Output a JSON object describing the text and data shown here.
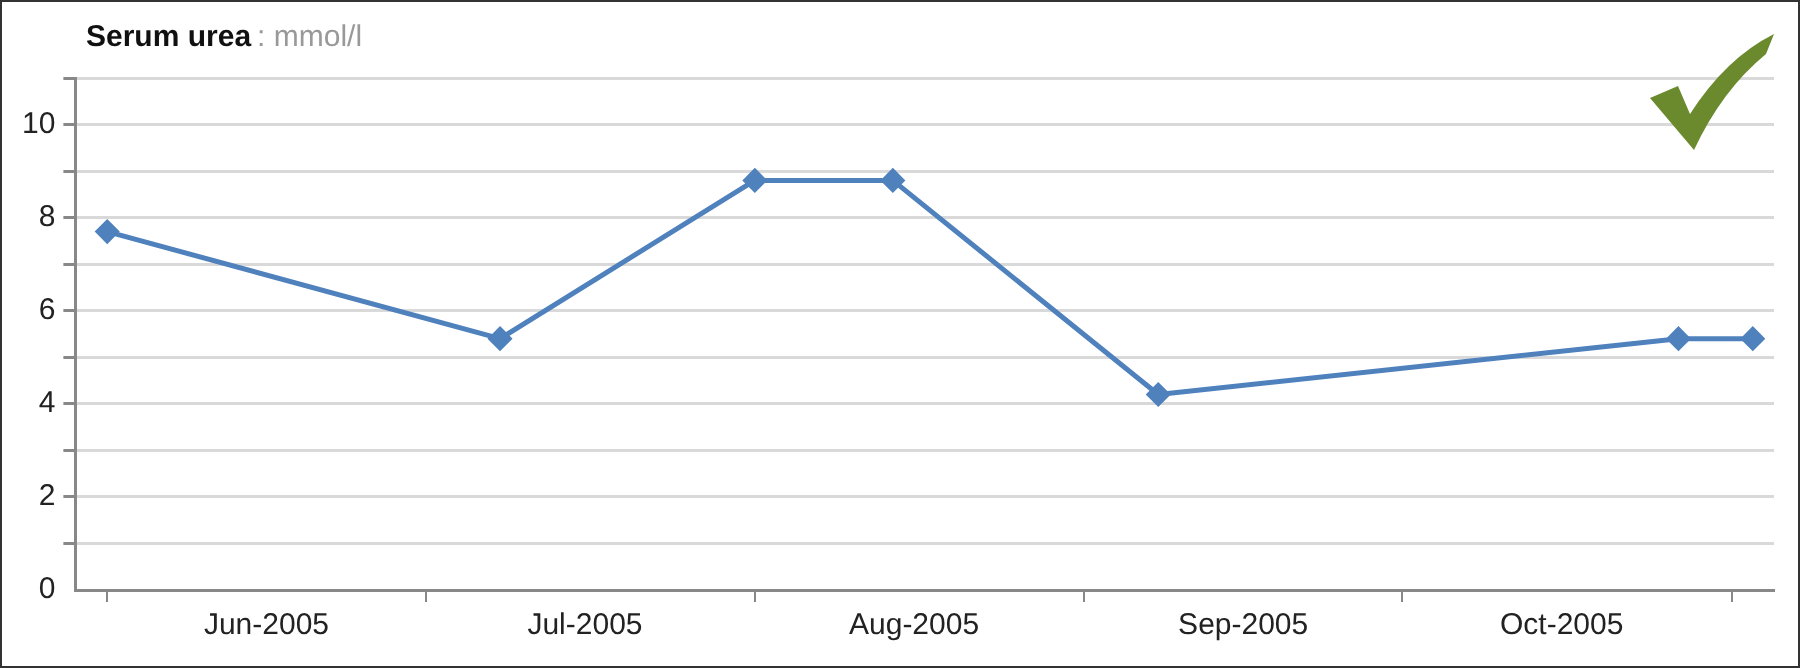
{
  "chart_data": {
    "type": "line",
    "title": "Serum urea",
    "subtitle": ": mmol/l",
    "x": [
      "2005-06-01",
      "2005-07-08",
      "2005-08-01",
      "2005-08-14",
      "2005-09-08",
      "2005-10-27",
      "2005-11-03"
    ],
    "series": [
      {
        "color": "#4f81bd",
        "values": [
          7.7,
          5.4,
          8.8,
          8.8,
          4.2,
          5.4,
          5.4
        ]
      }
    ],
    "xlim": [
      "2005-05-29",
      "2005-11-05"
    ],
    "xticks": [
      {
        "value": "2005-06-01",
        "label": null
      },
      {
        "value": "2005-06-16",
        "label": "Jun-2005"
      },
      {
        "value": "2005-07-01",
        "label": null
      },
      {
        "value": "2005-07-16",
        "label": "Jul-2005"
      },
      {
        "value": "2005-08-01",
        "label": null
      },
      {
        "value": "2005-08-16",
        "label": "Aug-2005"
      },
      {
        "value": "2005-09-01",
        "label": null
      },
      {
        "value": "2005-09-16",
        "label": "Sep-2005"
      },
      {
        "value": "2005-10-01",
        "label": null
      },
      {
        "value": "2005-10-16",
        "label": "Oct-2005"
      },
      {
        "value": "2005-11-01",
        "label": null
      }
    ],
    "ylim": [
      0,
      11
    ],
    "yticks": [
      0,
      {
        "value": 1,
        "label": null
      },
      2,
      {
        "value": 3,
        "label": null
      },
      4,
      {
        "value": 5,
        "label": null
      },
      6,
      {
        "value": 7,
        "label": null
      },
      8,
      {
        "value": 9,
        "label": null
      },
      10,
      {
        "value": 11,
        "label": null
      }
    ],
    "grid": "y",
    "legend": false,
    "marker": "diamond",
    "line_style": "solid"
  }
}
